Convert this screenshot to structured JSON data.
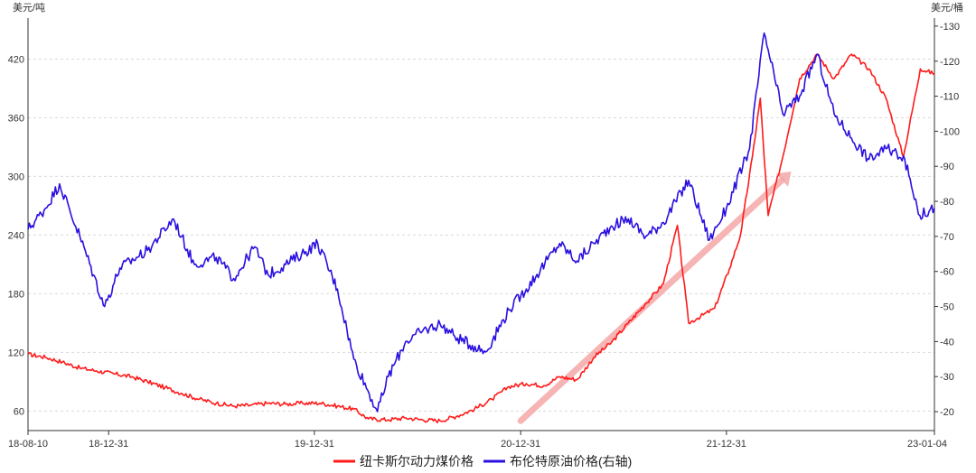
{
  "chart_data": {
    "type": "line",
    "y_left_unit": "美元/吨",
    "y_right_unit": "美元/桶",
    "x_tick_labels": [
      "18-08-10",
      "18-12-31",
      "19-12-31",
      "20-12-31",
      "21-12-31",
      "23-01-04"
    ],
    "x_tick_dates": [
      "2018-08-10",
      "2018-12-31",
      "2019-12-31",
      "2020-12-31",
      "2021-12-31",
      "2023-01-04"
    ],
    "x_range": [
      "2018-08-10",
      "2023-01-04"
    ],
    "y_left_ticks": [
      60,
      120,
      180,
      240,
      300,
      360,
      420
    ],
    "y_left_range": [
      40,
      462
    ],
    "y_right_ticks": [
      20,
      30,
      40,
      50,
      60,
      70,
      80,
      90,
      100,
      110,
      120,
      130
    ],
    "y_right_range": [
      14.6,
      132.3
    ],
    "grid": "horizontal dashed",
    "legend_position": "bottom",
    "colors": {
      "coal": "#ff1a1a",
      "brent": "#2a10e0",
      "arrow": "#f5a8a8"
    },
    "series": [
      {
        "name": "纽卡斯尔动力煤价格",
        "axis": "left",
        "color": "#ff1a1a",
        "points": [
          [
            "2018-08-10",
            118
          ],
          [
            "2018-09-10",
            115
          ],
          [
            "2018-10-10",
            110
          ],
          [
            "2018-11-10",
            104
          ],
          [
            "2018-12-10",
            101
          ],
          [
            "2019-01-10",
            98
          ],
          [
            "2019-02-10",
            95
          ],
          [
            "2019-03-10",
            90
          ],
          [
            "2019-04-10",
            84
          ],
          [
            "2019-05-10",
            78
          ],
          [
            "2019-06-10",
            72
          ],
          [
            "2019-07-10",
            68
          ],
          [
            "2019-08-10",
            65
          ],
          [
            "2019-09-10",
            66
          ],
          [
            "2019-10-10",
            68
          ],
          [
            "2019-11-10",
            67
          ],
          [
            "2019-12-10",
            68
          ],
          [
            "2020-01-10",
            68
          ],
          [
            "2020-02-10",
            65
          ],
          [
            "2020-03-10",
            62
          ],
          [
            "2020-04-05",
            52
          ],
          [
            "2020-05-10",
            51
          ],
          [
            "2020-06-10",
            53
          ],
          [
            "2020-07-10",
            51
          ],
          [
            "2020-08-10",
            50
          ],
          [
            "2020-09-10",
            55
          ],
          [
            "2020-10-10",
            62
          ],
          [
            "2020-11-10",
            72
          ],
          [
            "2020-12-10",
            85
          ],
          [
            "2021-01-10",
            88
          ],
          [
            "2021-02-10",
            86
          ],
          [
            "2021-03-10",
            95
          ],
          [
            "2021-04-10",
            92
          ],
          [
            "2021-05-10",
            115
          ],
          [
            "2021-06-10",
            130
          ],
          [
            "2021-07-10",
            150
          ],
          [
            "2021-08-10",
            170
          ],
          [
            "2021-09-10",
            190
          ],
          [
            "2021-10-05",
            250
          ],
          [
            "2021-10-25",
            150
          ],
          [
            "2021-11-10",
            155
          ],
          [
            "2021-12-10",
            165
          ],
          [
            "2022-01-05",
            205
          ],
          [
            "2022-01-25",
            240
          ],
          [
            "2022-02-15",
            320
          ],
          [
            "2022-03-01",
            380
          ],
          [
            "2022-03-15",
            260
          ],
          [
            "2022-04-10",
            320
          ],
          [
            "2022-05-10",
            400
          ],
          [
            "2022-06-10",
            425
          ],
          [
            "2022-07-10",
            400
          ],
          [
            "2022-08-10",
            425
          ],
          [
            "2022-09-10",
            410
          ],
          [
            "2022-10-10",
            380
          ],
          [
            "2022-11-10",
            320
          ],
          [
            "2022-12-10",
            410
          ],
          [
            "2023-01-04",
            405
          ]
        ]
      },
      {
        "name": "布伦特原油价格(右轴)",
        "axis": "right",
        "color": "#2a10e0",
        "points": [
          [
            "2018-08-10",
            72
          ],
          [
            "2018-09-10",
            78
          ],
          [
            "2018-10-05",
            85
          ],
          [
            "2018-11-10",
            70
          ],
          [
            "2018-12-24",
            50
          ],
          [
            "2019-01-20",
            61
          ],
          [
            "2019-03-10",
            66
          ],
          [
            "2019-04-25",
            75
          ],
          [
            "2019-06-01",
            62
          ],
          [
            "2019-07-10",
            64
          ],
          [
            "2019-08-10",
            58
          ],
          [
            "2019-09-16",
            67
          ],
          [
            "2019-10-10",
            59
          ],
          [
            "2019-11-10",
            62
          ],
          [
            "2020-01-06",
            68
          ],
          [
            "2020-02-10",
            55
          ],
          [
            "2020-03-10",
            35
          ],
          [
            "2020-04-21",
            20
          ],
          [
            "2020-05-10",
            30
          ],
          [
            "2020-06-10",
            40
          ],
          [
            "2020-07-10",
            43
          ],
          [
            "2020-08-10",
            45
          ],
          [
            "2020-09-10",
            41
          ],
          [
            "2020-10-30",
            37
          ],
          [
            "2020-12-10",
            49
          ],
          [
            "2021-01-10",
            55
          ],
          [
            "2021-03-10",
            68
          ],
          [
            "2021-04-10",
            63
          ],
          [
            "2021-05-10",
            68
          ],
          [
            "2021-06-10",
            73
          ],
          [
            "2021-07-10",
            75
          ],
          [
            "2021-08-10",
            70
          ],
          [
            "2021-09-10",
            74
          ],
          [
            "2021-10-25",
            86
          ],
          [
            "2021-12-01",
            69
          ],
          [
            "2021-12-31",
            78
          ],
          [
            "2022-02-10",
            95
          ],
          [
            "2022-03-08",
            128
          ],
          [
            "2022-04-10",
            105
          ],
          [
            "2022-05-10",
            110
          ],
          [
            "2022-06-10",
            122
          ],
          [
            "2022-07-10",
            105
          ],
          [
            "2022-08-10",
            98
          ],
          [
            "2022-09-10",
            92
          ],
          [
            "2022-10-10",
            95
          ],
          [
            "2022-11-10",
            93
          ],
          [
            "2022-12-09",
            76
          ],
          [
            "2023-01-04",
            78
          ]
        ]
      }
    ],
    "annotations": [
      {
        "type": "arrow",
        "color": "#f5a8a8",
        "from": [
          "2020-12-31",
          50
        ],
        "to": [
          "2022-04-25",
          305
        ],
        "axis": "left"
      }
    ]
  }
}
